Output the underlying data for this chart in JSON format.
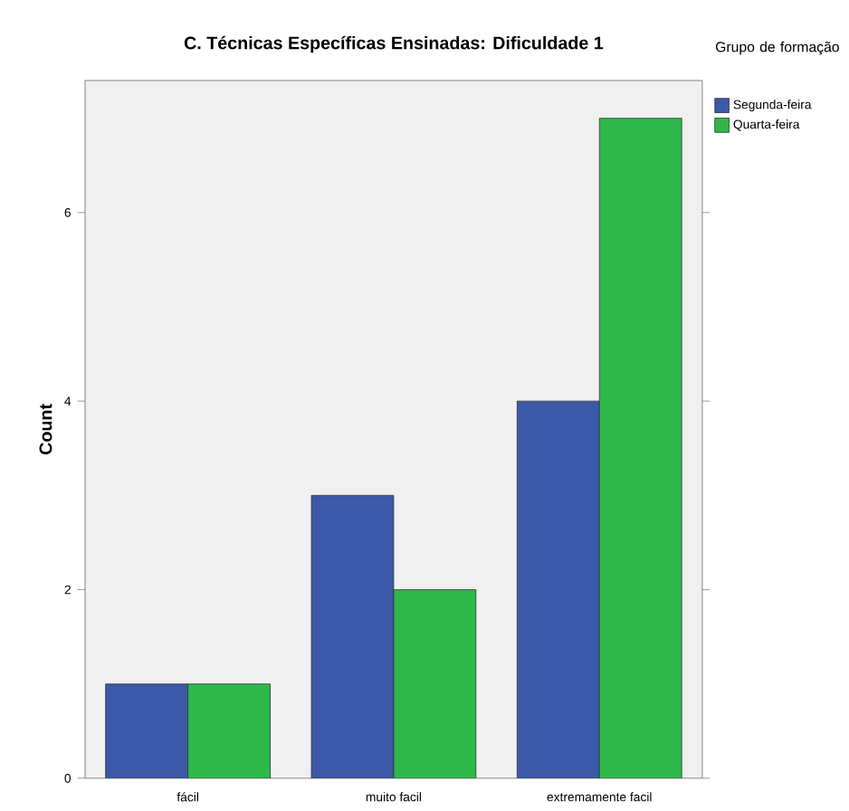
{
  "chart_data": {
    "type": "bar",
    "title": "C. Técnicas Específicas Ensinadas: Dificuldade 1",
    "categories": [
      "fácil",
      "muito facil",
      "extremamente facil"
    ],
    "ylabel": "Count",
    "legend_title": "Grupo de formação",
    "series": [
      {
        "name": "Segunda-feira",
        "color": "#3c58a8",
        "values": [
          1,
          3,
          4
        ]
      },
      {
        "name": "Quarta-feira",
        "color": "#2eb84a",
        "values": [
          1,
          2,
          7
        ]
      }
    ],
    "ylim": [
      0,
      7.4
    ],
    "yticks": [
      0,
      2,
      4,
      6
    ],
    "grid": false,
    "legend": "right"
  }
}
